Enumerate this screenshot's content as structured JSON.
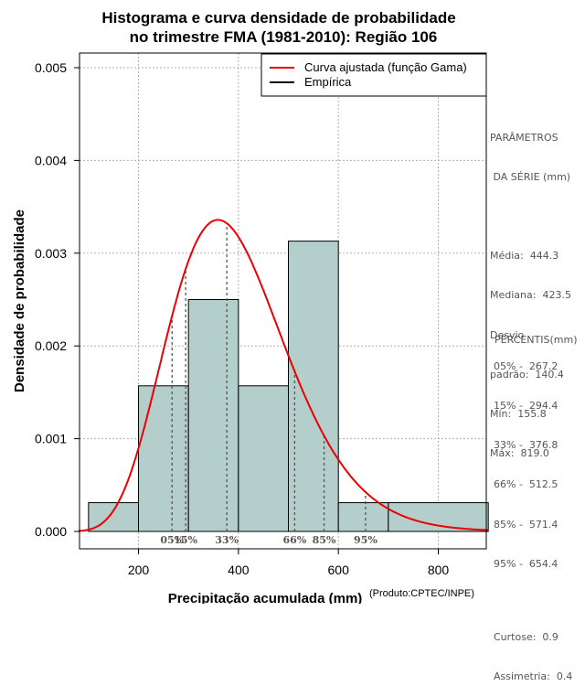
{
  "chart_data": {
    "type": "histogram",
    "title_line1": "Histograma e curva densidade de probabilidade",
    "title_line2": "no trimestre FMA (1981-2010): Região 106",
    "xlabel": "Precipitação acumulada (mm)",
    "ylabel": "Densidade de probabilidade",
    "credit": "(Produto:CPTEC/INPE)",
    "xlim": [
      80,
      900
    ],
    "ylim": [
      0,
      0.0052
    ],
    "x_ticks": [
      200,
      400,
      600,
      800
    ],
    "x_tick_labels": [
      "200",
      "400",
      "600",
      "800"
    ],
    "y_ticks": [
      0,
      0.001,
      0.002,
      0.003,
      0.004,
      0.005
    ],
    "y_tick_labels": [
      "0.000",
      "0.001",
      "0.002",
      "0.003",
      "0.004",
      "0.005"
    ],
    "grid": true,
    "bins": [
      {
        "from": 100,
        "to": 200,
        "density": 0.00031
      },
      {
        "from": 200,
        "to": 300,
        "density": 0.00157
      },
      {
        "from": 300,
        "to": 400,
        "density": 0.0025
      },
      {
        "from": 400,
        "to": 500,
        "density": 0.00157
      },
      {
        "from": 500,
        "to": 600,
        "density": 0.00313
      },
      {
        "from": 600,
        "to": 700,
        "density": 0.00031
      },
      {
        "from": 700,
        "to": 900,
        "density": 0.00031
      }
    ],
    "gamma_fit": {
      "shape": 10.3,
      "scale": 38.6
    },
    "percentile_lines": [
      {
        "label": "05%",
        "value": 267.2
      },
      {
        "label": "15%",
        "value": 294.4
      },
      {
        "label": "33%",
        "value": 376.8
      },
      {
        "label": "66%",
        "value": 512.5
      },
      {
        "label": "85%",
        "value": 571.4
      },
      {
        "label": "95%",
        "value": 654.4
      }
    ],
    "legend": {
      "position": "top-right",
      "items": [
        {
          "label": "Curva ajustada (função Gama)",
          "color": "#ee0000"
        },
        {
          "label": "Empírica",
          "color": "#000000"
        }
      ]
    },
    "colors": {
      "bar_fill": "#b4cecc",
      "bar_stroke": "#000000",
      "curve": "#ee0000",
      "grid": "#b0b0b0",
      "percentile_line": "#555555",
      "side_text": "#555555"
    }
  },
  "side_panel": {
    "params_title_1": "PARÂMETROS",
    "params_title_2": " DA SÉRIE (mm)",
    "media": "Média:  444.3",
    "mediana": "Mediana:  423.5",
    "desvio_1": "Desvio",
    "desvio_2": "padrão:  140.4",
    "min": "Mín:  155.8",
    "max": "Máx:  819.0",
    "percentis_title": "PERCENTIS(mm)",
    "p05": "05% -  267.2",
    "p15": "15% -  294.4",
    "p33": "33% -  376.8",
    "p66": "66% -  512.5",
    "p85": "85% -  571.4",
    "p95": "95% -  654.4",
    "curtose": "Curtose:  0.9",
    "assimetria": "Assimetria:  0.4"
  }
}
